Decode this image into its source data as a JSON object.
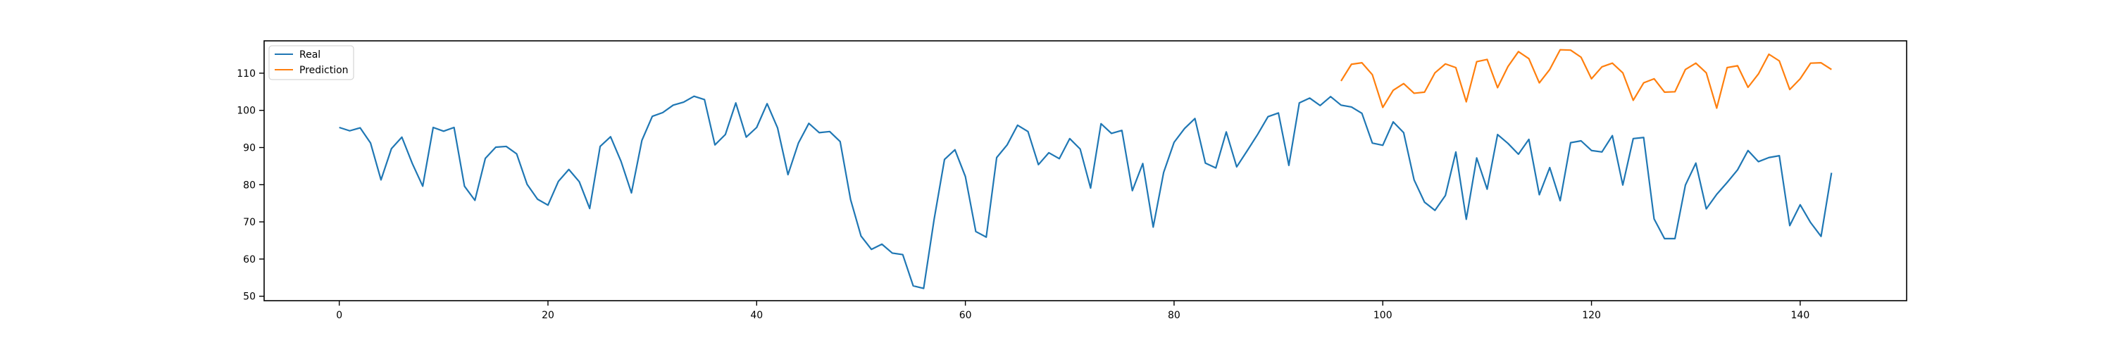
{
  "chart_data": {
    "type": "line",
    "xlim": [
      -7.2,
      150.2
    ],
    "ylim": [
      48.8,
      118.7
    ],
    "xticks": [
      0,
      20,
      40,
      60,
      80,
      100,
      120,
      140
    ],
    "xtick_labels": [
      "0",
      "20",
      "40",
      "60",
      "80",
      "100",
      "120",
      "140"
    ],
    "yticks": [
      50,
      60,
      70,
      80,
      90,
      100,
      110
    ],
    "ytick_labels": [
      "50",
      "60",
      "70",
      "80",
      "90",
      "100",
      "110"
    ],
    "grid": false,
    "legend_position": "top-left",
    "series": [
      {
        "name": "Real",
        "color": "#1f77b4",
        "x_start": 0,
        "values": [
          95.4,
          94.5,
          95.3,
          91.2,
          81.3,
          89.7,
          92.8,
          85.7,
          79.6,
          95.4,
          94.4,
          95.4,
          79.6,
          75.8,
          87.1,
          90.1,
          90.3,
          88.3,
          80.1,
          76.1,
          74.5,
          80.9,
          84.1,
          80.8,
          73.6,
          90.3,
          92.9,
          86.3,
          77.8,
          91.9,
          98.4,
          99.4,
          101.4,
          102.2,
          103.8,
          102.9,
          90.7,
          93.5,
          102.0,
          92.8,
          95.4,
          101.8,
          95.3,
          82.7,
          91.2,
          96.5,
          94.0,
          94.3,
          91.6,
          76.0,
          66.2,
          62.6,
          64.0,
          61.6,
          61.2,
          52.8,
          52.1,
          70.6,
          86.8,
          89.4,
          82.2,
          67.4,
          65.9,
          87.3,
          90.7,
          96.0,
          94.3,
          85.4,
          88.6,
          87.0,
          92.4,
          89.6,
          79.1,
          96.4,
          93.8,
          94.6,
          78.4,
          85.7,
          68.6,
          83.3,
          91.4,
          95.1,
          97.8,
          85.8,
          84.5,
          94.2,
          84.8,
          89.1,
          93.5,
          98.3,
          99.3,
          85.2,
          102.0,
          103.3,
          101.3,
          103.7,
          101.4,
          100.9,
          99.2,
          91.2,
          90.6,
          96.9,
          94.0,
          81.3,
          75.3,
          73.1,
          77.1,
          88.8,
          70.7,
          87.2,
          78.8,
          93.5,
          91.1,
          88.2,
          92.2,
          77.3,
          84.6,
          75.7,
          91.3,
          91.8,
          89.2,
          88.8,
          93.2,
          79.9,
          92.4,
          92.7,
          70.8,
          65.5,
          65.5,
          79.9,
          85.8,
          73.5,
          77.4,
          80.6,
          84.0,
          89.2,
          86.2,
          87.3,
          87.8,
          69.0,
          74.6,
          69.8,
          66.1,
          83.2
        ]
      },
      {
        "name": "Prediction",
        "color": "#ff7f0e",
        "x_start": 96,
        "values": [
          107.9,
          112.4,
          112.8,
          109.6,
          100.8,
          105.4,
          107.2,
          104.6,
          104.9,
          110.1,
          112.5,
          111.5,
          102.3,
          113.1,
          113.7,
          106.1,
          111.8,
          115.8,
          113.9,
          107.4,
          111.0,
          116.3,
          116.2,
          114.3,
          108.5,
          111.7,
          112.7,
          110.1,
          102.7,
          107.4,
          108.5,
          104.9,
          105.0,
          111.0,
          112.7,
          110.1,
          100.6,
          111.5,
          112.0,
          106.2,
          109.8,
          115.1,
          113.3,
          105.6,
          108.5,
          112.7,
          112.8,
          111.0
        ]
      }
    ]
  }
}
